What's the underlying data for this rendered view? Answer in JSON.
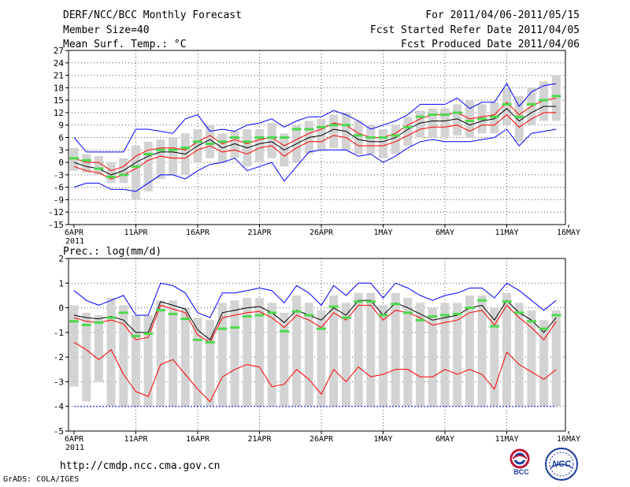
{
  "header": {
    "title": "DERF/NCC/BCC Monthly Forecast",
    "member_size": "Member Size=40",
    "variable": "Mean Surf. Temp.: °C",
    "period": "For 2011/04/06-2011/05/15",
    "start_date": "Fcst Started Refer Date 2011/04/05",
    "produced_date": "Fcst Produced Date 2011/04/06"
  },
  "footer": {
    "url": "http://cmdp.ncc.cma.gov.cn",
    "credit": "GrADS: COLA/IGES",
    "logo_bcc": "BCC",
    "logo_ncc": "NCC"
  },
  "colors": {
    "box": "#d3d3d3",
    "mean": "#000000",
    "spread": "#ff0000",
    "extreme": "#0000ff",
    "obs": "#4cd94c",
    "grid": "#555555"
  },
  "chart_data": [
    {
      "type": "line",
      "title": "Mean Surf. Temp.: °C",
      "ylim": [
        -15,
        27
      ],
      "yticks": [
        27,
        24,
        21,
        18,
        15,
        12,
        9,
        6,
        3,
        0,
        -3,
        -6,
        -9,
        -12,
        -15
      ],
      "xticks": [
        {
          "day": 1,
          "label": "6APR"
        },
        {
          "day": 6,
          "label": "11APR"
        },
        {
          "day": 11,
          "label": "16APR"
        },
        {
          "day": 16,
          "label": "21APR"
        },
        {
          "day": 21,
          "label": "26APR"
        },
        {
          "day": 26,
          "label": "1MAY"
        },
        {
          "day": 31,
          "label": "6MAY"
        },
        {
          "day": 36,
          "label": "11MAY"
        },
        {
          "day": 41,
          "label": "16MAY"
        }
      ],
      "year_label": "2011",
      "x": [
        1,
        2,
        3,
        4,
        5,
        6,
        7,
        8,
        9,
        10,
        11,
        12,
        13,
        14,
        15,
        16,
        17,
        18,
        19,
        20,
        21,
        22,
        23,
        24,
        25,
        26,
        27,
        28,
        29,
        30,
        31,
        32,
        33,
        34,
        35,
        36,
        37,
        38,
        39,
        40
      ],
      "series": [
        {
          "name": "ensemble-mean",
          "color": "#000000",
          "values": [
            0,
            -1,
            -1.5,
            -3,
            -2,
            0,
            1.5,
            2.5,
            2.5,
            2,
            4,
            5.5,
            3.5,
            4.5,
            3.5,
            4.5,
            5,
            3,
            4.5,
            6,
            6.5,
            8,
            7.5,
            5.5,
            5,
            5,
            6,
            8,
            9.5,
            10,
            10,
            10.5,
            9,
            10,
            10.5,
            13,
            10,
            12,
            13.5,
            13.5
          ]
        },
        {
          "name": "upper-spread",
          "color": "#ff0000",
          "values": [
            1,
            0,
            0,
            -2,
            -1,
            1.5,
            3,
            3.5,
            3.5,
            3,
            5,
            6.5,
            4.5,
            5.5,
            4.5,
            5.5,
            6,
            4,
            5.5,
            7,
            8,
            9.5,
            9,
            7,
            6,
            6,
            7,
            9,
            10.5,
            11.5,
            11.5,
            12,
            10.5,
            11,
            11.5,
            14.5,
            11.5,
            13.5,
            15,
            15.5
          ]
        },
        {
          "name": "lower-spread",
          "color": "#ff0000",
          "values": [
            -1,
            -2,
            -2.5,
            -4,
            -3,
            -1.5,
            0.5,
            1.5,
            1,
            1,
            3,
            4,
            2.5,
            3,
            2,
            3.5,
            4,
            1.5,
            3.5,
            5,
            5,
            6.5,
            6,
            4,
            4,
            4,
            5,
            6.5,
            8,
            8.5,
            8.5,
            9,
            7.5,
            9,
            9,
            11.5,
            8.5,
            10.5,
            12,
            12
          ]
        },
        {
          "name": "ensemble-max",
          "color": "#0000ff",
          "values": [
            6,
            2.5,
            2.5,
            2.5,
            2.5,
            8,
            8,
            7.5,
            7,
            10.5,
            11.5,
            7.5,
            8,
            7.5,
            9,
            9.5,
            10.5,
            8.5,
            10,
            11,
            11,
            12.5,
            11.5,
            10,
            8,
            9,
            10,
            11.5,
            14,
            14,
            14,
            15.5,
            13,
            14.5,
            14.5,
            19,
            13.5,
            17,
            18.5,
            19
          ]
        },
        {
          "name": "ensemble-min",
          "color": "#0000ff",
          "values": [
            -6,
            -5,
            -5,
            -6.5,
            -6.5,
            -7,
            -5,
            -3,
            -3,
            -4,
            -2,
            -0.5,
            0,
            1,
            -2,
            -1,
            0,
            -4.5,
            -1,
            2.5,
            3,
            3,
            3,
            1.5,
            2,
            0,
            1.5,
            3.5,
            5,
            5.5,
            5,
            5,
            5,
            5.5,
            6,
            8,
            4,
            7,
            7.5,
            8
          ]
        },
        {
          "name": "observed",
          "color": "#4cd94c",
          "values": [
            1,
            0.5,
            -1.5,
            -3.5,
            -3,
            -1,
            2,
            3,
            3,
            3.5,
            5,
            4.5,
            5,
            6,
            5,
            6,
            6,
            6,
            8,
            8,
            8.5,
            9,
            9,
            6.5,
            6,
            6,
            6.5,
            8.5,
            11,
            11.5,
            11.5,
            12,
            10,
            10.5,
            11,
            14,
            11,
            14,
            15,
            16
          ]
        }
      ],
      "boxes": [
        {
          "day": 1,
          "low": -2,
          "high": 3.5
        },
        {
          "day": 2,
          "low": -2.5,
          "high": 2
        },
        {
          "day": 3,
          "low": -3,
          "high": 1.5
        },
        {
          "day": 4,
          "low": -5,
          "high": 0
        },
        {
          "day": 5,
          "low": -5,
          "high": 1
        },
        {
          "day": 6,
          "low": -9,
          "high": 4
        },
        {
          "day": 7,
          "low": -7,
          "high": 5
        },
        {
          "day": 8,
          "low": -4,
          "high": 5.5
        },
        {
          "day": 9,
          "low": -3,
          "high": 6
        },
        {
          "day": 10,
          "low": -3,
          "high": 7
        },
        {
          "day": 11,
          "low": 0,
          "high": 8
        },
        {
          "day": 12,
          "low": 1,
          "high": 9
        },
        {
          "day": 13,
          "low": 0,
          "high": 7
        },
        {
          "day": 14,
          "low": 1,
          "high": 7.5
        },
        {
          "day": 15,
          "low": -1,
          "high": 8
        },
        {
          "day": 16,
          "low": 0,
          "high": 8
        },
        {
          "day": 17,
          "low": 1,
          "high": 9.5
        },
        {
          "day": 18,
          "low": -1,
          "high": 7
        },
        {
          "day": 19,
          "low": 0,
          "high": 9
        },
        {
          "day": 20,
          "low": 2,
          "high": 10
        },
        {
          "day": 21,
          "low": 3,
          "high": 10.5
        },
        {
          "day": 22,
          "low": 3.5,
          "high": 11.5
        },
        {
          "day": 23,
          "low": 3,
          "high": 12
        },
        {
          "day": 24,
          "low": 2,
          "high": 10
        },
        {
          "day": 25,
          "low": 2,
          "high": 9
        },
        {
          "day": 26,
          "low": 1,
          "high": 8
        },
        {
          "day": 27,
          "low": 2,
          "high": 9
        },
        {
          "day": 28,
          "low": 4,
          "high": 11
        },
        {
          "day": 29,
          "low": 6,
          "high": 12.5
        },
        {
          "day": 30,
          "low": 6,
          "high": 13
        },
        {
          "day": 31,
          "low": 6,
          "high": 13
        },
        {
          "day": 32,
          "low": 6.5,
          "high": 14
        },
        {
          "day": 33,
          "low": 6,
          "high": 15
        },
        {
          "day": 34,
          "low": 7,
          "high": 14
        },
        {
          "day": 35,
          "low": 7,
          "high": 14.5
        },
        {
          "day": 36,
          "low": 9,
          "high": 18
        },
        {
          "day": 37,
          "low": 5,
          "high": 16
        },
        {
          "day": 38,
          "low": 9,
          "high": 18
        },
        {
          "day": 39,
          "low": 10,
          "high": 19.5
        },
        {
          "day": 40,
          "low": 10,
          "high": 21
        }
      ]
    },
    {
      "type": "line",
      "title": "Prec.: log(mm/d)",
      "ylim": [
        -5,
        2
      ],
      "yticks": [
        2,
        1,
        0,
        -1,
        -2,
        -3,
        -4,
        -5
      ],
      "xticks": [
        {
          "day": 1,
          "label": "6APR"
        },
        {
          "day": 6,
          "label": "11APR"
        },
        {
          "day": 11,
          "label": "16APR"
        },
        {
          "day": 16,
          "label": "21APR"
        },
        {
          "day": 21,
          "label": "26APR"
        },
        {
          "day": 26,
          "label": "1MAY"
        },
        {
          "day": 31,
          "label": "6MAY"
        },
        {
          "day": 36,
          "label": "11MAY"
        },
        {
          "day": 41,
          "label": "16MAY"
        }
      ],
      "year_label": "2011",
      "x": [
        1,
        2,
        3,
        4,
        5,
        6,
        7,
        8,
        9,
        10,
        11,
        12,
        13,
        14,
        15,
        16,
        17,
        18,
        19,
        20,
        21,
        22,
        23,
        24,
        25,
        26,
        27,
        28,
        29,
        30,
        31,
        32,
        33,
        34,
        35,
        36,
        37,
        38,
        39,
        40
      ],
      "series": [
        {
          "name": "ensemble-mean",
          "color": "#000000",
          "values": [
            -0.3,
            -0.4,
            -0.45,
            -0.35,
            -0.5,
            -1,
            -1,
            0.25,
            0.1,
            -0.05,
            -0.9,
            -1.3,
            -0.2,
            -0.1,
            0,
            0.05,
            -0.2,
            -0.6,
            -0.1,
            -0.3,
            -0.5,
            0,
            -0.3,
            0.3,
            0.3,
            -0.3,
            0.2,
            0,
            -0.25,
            -0.5,
            -0.4,
            -0.3,
            0,
            0.1,
            -0.5,
            0.3,
            -0.2,
            -0.5,
            -1,
            -0.4
          ]
        },
        {
          "name": "upper-spread",
          "color": "#ff0000",
          "values": [
            -0.4,
            -0.55,
            -0.6,
            -0.5,
            -0.65,
            -1.3,
            -1.2,
            0.1,
            -0.05,
            -0.2,
            -1.1,
            -1.4,
            -0.4,
            -0.3,
            -0.2,
            -0.15,
            -0.4,
            -0.8,
            -0.3,
            -0.5,
            -0.8,
            -0.2,
            -0.5,
            0.1,
            0.1,
            -0.5,
            -0.1,
            -0.2,
            -0.4,
            -0.7,
            -0.6,
            -0.5,
            -0.2,
            -0.1,
            -0.7,
            0.1,
            -0.4,
            -0.8,
            -1.3,
            -0.55
          ]
        },
        {
          "name": "lower-spread",
          "color": "#ff0000",
          "values": [
            -1.4,
            -1.7,
            -2.1,
            -1.7,
            -2.7,
            -3.4,
            -3.6,
            -2.3,
            -2.1,
            -2.7,
            -3.3,
            -3.8,
            -2.8,
            -2.5,
            -2.3,
            -2.4,
            -3.2,
            -3.1,
            -2.5,
            -2.9,
            -3.5,
            -2.5,
            -3,
            -2.4,
            -2.8,
            -2.7,
            -2.5,
            -2.5,
            -2.8,
            -2.8,
            -2.5,
            -2.7,
            -2.5,
            -2.7,
            -3.3,
            -1.8,
            -2.3,
            -2.6,
            -2.9,
            -2.5
          ]
        },
        {
          "name": "ensemble-max",
          "color": "#0000ff",
          "values": [
            0.7,
            0.3,
            0.1,
            0.3,
            0.5,
            -0.3,
            -0.3,
            1,
            0.9,
            0.6,
            -0.2,
            -0.4,
            0.6,
            0.6,
            0.7,
            0.8,
            0.7,
            0.2,
            0.9,
            0.6,
            0.1,
            0.9,
            0.5,
            1,
            1,
            0.4,
            1,
            0.8,
            0.5,
            0.3,
            0.5,
            0.6,
            0.8,
            0.8,
            0.4,
            1,
            0.7,
            0.3,
            -0.1,
            0.3
          ]
        },
        {
          "name": "ensemble-min",
          "color": "#0000ff",
          "values": [
            -4,
            -4,
            -4,
            -4,
            -4,
            -4,
            -4,
            -4,
            -4,
            -4,
            -4,
            -4,
            -4,
            -4,
            -4,
            -4,
            -4,
            -4,
            -4,
            -4,
            -4,
            -4,
            -4,
            -4,
            -4,
            -4,
            -4,
            -4,
            -4,
            -4,
            -4,
            -4,
            -4,
            -4,
            -4,
            -4,
            -4,
            -4,
            -4,
            -4
          ]
        },
        {
          "name": "observed",
          "color": "#4cd94c",
          "values": [
            -0.55,
            -0.7,
            -0.6,
            -0.4,
            -0.2,
            -1.15,
            -1.05,
            -0.1,
            -0.25,
            -0.45,
            -1.3,
            -1.4,
            -0.85,
            -0.8,
            -0.35,
            -0.3,
            -0.2,
            -0.95,
            -0.15,
            -0.3,
            -0.85,
            0.05,
            -0.4,
            0.25,
            0.25,
            -0.3,
            0.15,
            -0.2,
            -0.5,
            -0.35,
            -0.3,
            -0.25,
            0,
            0.3,
            -0.75,
            0.25,
            -0.2,
            -0.55,
            -0.85,
            -0.3
          ]
        }
      ],
      "boxes": [
        {
          "day": 1,
          "low": -3.2,
          "high": 0.1
        },
        {
          "day": 2,
          "low": -3.8,
          "high": -0.2
        },
        {
          "day": 3,
          "low": -3,
          "high": -0.3
        },
        {
          "day": 4,
          "low": -4,
          "high": 0.4
        },
        {
          "day": 5,
          "low": -4,
          "high": 0.1
        },
        {
          "day": 6,
          "low": -4,
          "high": -0.3
        },
        {
          "day": 7,
          "low": -4,
          "high": -0.3
        },
        {
          "day": 8,
          "low": -4,
          "high": 0.3
        },
        {
          "day": 9,
          "low": -4,
          "high": 0.3
        },
        {
          "day": 10,
          "low": -4,
          "high": 0
        },
        {
          "day": 11,
          "low": -4,
          "high": -0.4
        },
        {
          "day": 12,
          "low": -4,
          "high": -0.5
        },
        {
          "day": 13,
          "low": -4,
          "high": 0.2
        },
        {
          "day": 14,
          "low": -4,
          "high": 0.3
        },
        {
          "day": 15,
          "low": -4,
          "high": 0.4
        },
        {
          "day": 16,
          "low": -4,
          "high": 0.4
        },
        {
          "day": 17,
          "low": -4,
          "high": 0.2
        },
        {
          "day": 18,
          "low": -4,
          "high": -0.2
        },
        {
          "day": 19,
          "low": -4,
          "high": 0.5
        },
        {
          "day": 20,
          "low": -4,
          "high": 0.2
        },
        {
          "day": 21,
          "low": -4,
          "high": -0.1
        },
        {
          "day": 22,
          "low": -4,
          "high": 0.5
        },
        {
          "day": 23,
          "low": -4,
          "high": 0.2
        },
        {
          "day": 24,
          "low": -4,
          "high": 0.6
        },
        {
          "day": 25,
          "low": -4,
          "high": 0.6
        },
        {
          "day": 26,
          "low": -4,
          "high": 0.1
        },
        {
          "day": 27,
          "low": -4,
          "high": 0.6
        },
        {
          "day": 28,
          "low": -4,
          "high": 0.4
        },
        {
          "day": 29,
          "low": -4,
          "high": 0.2
        },
        {
          "day": 30,
          "low": -4,
          "high": 0
        },
        {
          "day": 31,
          "low": -4,
          "high": 0.2
        },
        {
          "day": 32,
          "low": -4,
          "high": 0.2
        },
        {
          "day": 33,
          "low": -4,
          "high": 0.5
        },
        {
          "day": 34,
          "low": -4,
          "high": 0.5
        },
        {
          "day": 35,
          "low": -4,
          "high": 0
        },
        {
          "day": 36,
          "low": -4,
          "high": 0.6
        },
        {
          "day": 37,
          "low": -4,
          "high": 0.2
        },
        {
          "day": 38,
          "low": -4,
          "high": -0.1
        },
        {
          "day": 39,
          "low": -4,
          "high": -0.5
        },
        {
          "day": 40,
          "low": -4,
          "high": -0.1
        }
      ]
    }
  ]
}
